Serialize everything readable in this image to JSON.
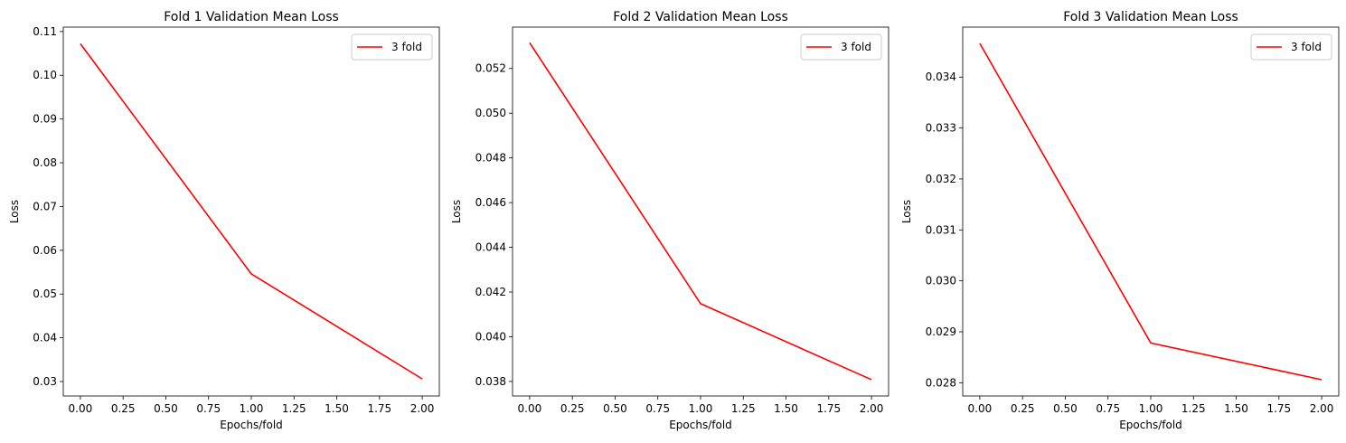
{
  "chart_data": [
    {
      "type": "line",
      "title": "Fold 1 Validation Mean Loss",
      "xlabel": "Epochs/fold",
      "ylabel": "Loss",
      "xlim": [
        -0.1,
        2.1
      ],
      "ylim": [
        0.0267,
        0.111
      ],
      "xticks": [
        0.0,
        0.25,
        0.5,
        0.75,
        1.0,
        1.25,
        1.5,
        1.75,
        2.0
      ],
      "xtick_labels": [
        "0.00",
        "0.25",
        "0.50",
        "0.75",
        "1.00",
        "1.25",
        "1.50",
        "1.75",
        "2.00"
      ],
      "yticks": [
        0.03,
        0.04,
        0.05,
        0.06,
        0.07,
        0.08,
        0.09,
        0.1,
        0.11
      ],
      "ytick_labels": [
        "0.03",
        "0.04",
        "0.05",
        "0.06",
        "0.07",
        "0.08",
        "0.09",
        "0.10",
        "0.11"
      ],
      "grid": false,
      "legend": "top-right",
      "series": [
        {
          "name": "3 fold",
          "color": "#ff0000",
          "x": [
            0,
            1,
            2
          ],
          "y": [
            0.1072,
            0.0546,
            0.0306
          ]
        }
      ]
    },
    {
      "type": "line",
      "title": "Fold 2 Validation Mean Loss",
      "xlabel": "Epochs/fold",
      "ylabel": "Loss",
      "xlim": [
        -0.1,
        2.1
      ],
      "ylim": [
        0.03735,
        0.05385
      ],
      "xticks": [
        0.0,
        0.25,
        0.5,
        0.75,
        1.0,
        1.25,
        1.5,
        1.75,
        2.0
      ],
      "xtick_labels": [
        "0.00",
        "0.25",
        "0.50",
        "0.75",
        "1.00",
        "1.25",
        "1.50",
        "1.75",
        "2.00"
      ],
      "yticks": [
        0.038,
        0.04,
        0.042,
        0.044,
        0.046,
        0.048,
        0.05,
        0.052
      ],
      "ytick_labels": [
        "0.038",
        "0.040",
        "0.042",
        "0.044",
        "0.046",
        "0.048",
        "0.050",
        "0.052"
      ],
      "grid": false,
      "legend": "top-right",
      "series": [
        {
          "name": "3 fold",
          "color": "#ff0000",
          "x": [
            0,
            1,
            2
          ],
          "y": [
            0.05315,
            0.04148,
            0.03808
          ]
        }
      ]
    },
    {
      "type": "line",
      "title": "Fold 3 Validation Mean Loss",
      "xlabel": "Epochs/fold",
      "ylabel": "Loss",
      "xlim": [
        -0.1,
        2.1
      ],
      "ylim": [
        0.02774,
        0.03498
      ],
      "xticks": [
        0.0,
        0.25,
        0.5,
        0.75,
        1.0,
        1.25,
        1.5,
        1.75,
        2.0
      ],
      "xtick_labels": [
        "0.00",
        "0.25",
        "0.50",
        "0.75",
        "1.00",
        "1.25",
        "1.50",
        "1.75",
        "2.00"
      ],
      "yticks": [
        0.028,
        0.029,
        0.03,
        0.031,
        0.032,
        0.033,
        0.034
      ],
      "ytick_labels": [
        "0.028",
        "0.029",
        "0.030",
        "0.031",
        "0.032",
        "0.033",
        "0.034"
      ],
      "grid": false,
      "legend": "top-right",
      "series": [
        {
          "name": "3 fold",
          "color": "#ff0000",
          "x": [
            0,
            1,
            2
          ],
          "y": [
            0.03466,
            0.02878,
            0.02806
          ]
        }
      ]
    }
  ]
}
